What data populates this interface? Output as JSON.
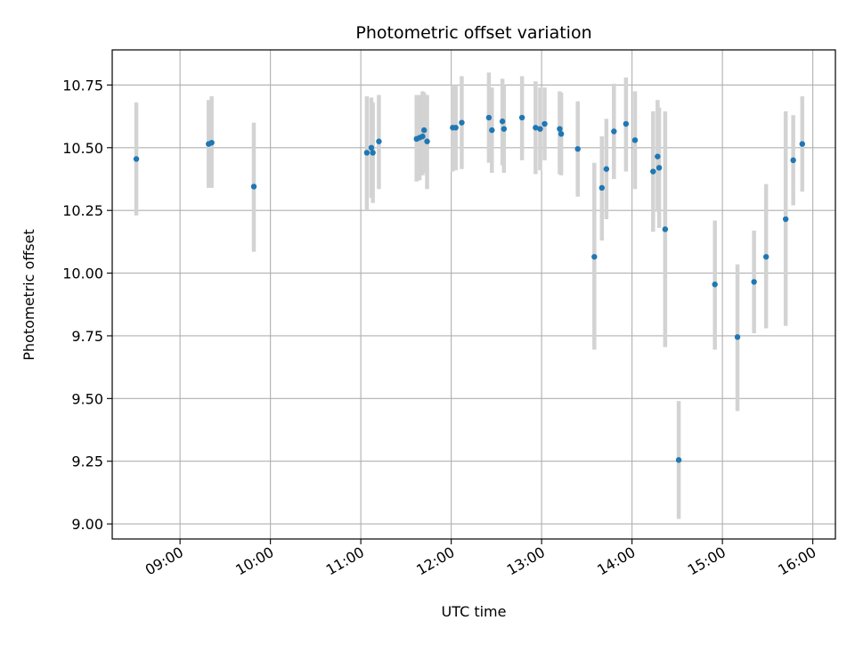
{
  "chart_data": {
    "type": "scatter",
    "title": "Photometric offset variation",
    "xlabel": "UTC time",
    "ylabel": "Photometric offset",
    "x_unit": "UTC time (HH:MM)",
    "xlim": [
      "08:15",
      "16:15"
    ],
    "ylim": [
      8.94,
      10.89
    ],
    "x_ticks": [
      "09:00",
      "10:00",
      "11:00",
      "12:00",
      "13:00",
      "14:00",
      "15:00",
      "16:00"
    ],
    "y_ticks": [
      9.0,
      9.25,
      9.5,
      9.75,
      10.0,
      10.25,
      10.5,
      10.75
    ],
    "y_tick_labels": [
      "9.00",
      "9.25",
      "9.50",
      "9.75",
      "10.00",
      "10.25",
      "10.50",
      "10.75"
    ],
    "grid": true,
    "legend": "none",
    "colors": {
      "point": "#1f77b4",
      "errorbar": "#d3d3d3",
      "grid": "#b0b0b0"
    },
    "series": [
      {
        "points": [
          {
            "x": "08:31",
            "y": 10.455,
            "low": 10.23,
            "high": 10.68
          },
          {
            "x": "09:19",
            "y": 10.515,
            "low": 10.34,
            "high": 10.69
          },
          {
            "x": "09:21",
            "y": 10.52,
            "low": 10.34,
            "high": 10.705
          },
          {
            "x": "09:49",
            "y": 10.345,
            "low": 10.085,
            "high": 10.6
          },
          {
            "x": "11:04",
            "y": 10.48,
            "low": 10.25,
            "high": 10.705
          },
          {
            "x": "11:07",
            "y": 10.5,
            "low": 10.3,
            "high": 10.7
          },
          {
            "x": "11:08",
            "y": 10.48,
            "low": 10.28,
            "high": 10.68
          },
          {
            "x": "11:12",
            "y": 10.525,
            "low": 10.335,
            "high": 10.71
          },
          {
            "x": "11:37",
            "y": 10.535,
            "low": 10.365,
            "high": 10.71
          },
          {
            "x": "11:39",
            "y": 10.54,
            "low": 10.37,
            "high": 10.71
          },
          {
            "x": "11:41",
            "y": 10.545,
            "low": 10.39,
            "high": 10.725
          },
          {
            "x": "11:42",
            "y": 10.57,
            "low": 10.4,
            "high": 10.72
          },
          {
            "x": "11:44",
            "y": 10.525,
            "low": 10.335,
            "high": 10.71
          },
          {
            "x": "12:01",
            "y": 10.58,
            "low": 10.405,
            "high": 10.75
          },
          {
            "x": "12:03",
            "y": 10.58,
            "low": 10.41,
            "high": 10.75
          },
          {
            "x": "12:07",
            "y": 10.6,
            "low": 10.415,
            "high": 10.785
          },
          {
            "x": "12:25",
            "y": 10.62,
            "low": 10.44,
            "high": 10.8
          },
          {
            "x": "12:27",
            "y": 10.57,
            "low": 10.4,
            "high": 10.74
          },
          {
            "x": "12:34",
            "y": 10.605,
            "low": 10.43,
            "high": 10.775
          },
          {
            "x": "12:35",
            "y": 10.575,
            "low": 10.4,
            "high": 10.75
          },
          {
            "x": "12:47",
            "y": 10.62,
            "low": 10.45,
            "high": 10.785
          },
          {
            "x": "12:56",
            "y": 10.58,
            "low": 10.395,
            "high": 10.765
          },
          {
            "x": "12:59",
            "y": 10.575,
            "low": 10.41,
            "high": 10.74
          },
          {
            "x": "13:02",
            "y": 10.595,
            "low": 10.45,
            "high": 10.74
          },
          {
            "x": "13:12",
            "y": 10.575,
            "low": 10.395,
            "high": 10.725
          },
          {
            "x": "13:13",
            "y": 10.555,
            "low": 10.39,
            "high": 10.72
          },
          {
            "x": "13:24",
            "y": 10.495,
            "low": 10.305,
            "high": 10.685
          },
          {
            "x": "13:35",
            "y": 10.065,
            "low": 9.695,
            "high": 10.44
          },
          {
            "x": "13:40",
            "y": 10.34,
            "low": 10.13,
            "high": 10.545
          },
          {
            "x": "13:43",
            "y": 10.415,
            "low": 10.215,
            "high": 10.615
          },
          {
            "x": "13:48",
            "y": 10.565,
            "low": 10.375,
            "high": 10.755
          },
          {
            "x": "13:56",
            "y": 10.595,
            "low": 10.405,
            "high": 10.78
          },
          {
            "x": "14:02",
            "y": 10.53,
            "low": 10.335,
            "high": 10.725
          },
          {
            "x": "14:14",
            "y": 10.405,
            "low": 10.165,
            "high": 10.645
          },
          {
            "x": "14:17",
            "y": 10.465,
            "low": 10.245,
            "high": 10.69
          },
          {
            "x": "14:18",
            "y": 10.42,
            "low": 10.18,
            "high": 10.66
          },
          {
            "x": "14:22",
            "y": 10.175,
            "low": 9.705,
            "high": 10.645
          },
          {
            "x": "14:31",
            "y": 9.255,
            "low": 9.02,
            "high": 9.49
          },
          {
            "x": "14:55",
            "y": 9.955,
            "low": 9.695,
            "high": 10.21
          },
          {
            "x": "15:10",
            "y": 9.745,
            "low": 9.45,
            "high": 10.035
          },
          {
            "x": "15:21",
            "y": 9.965,
            "low": 9.76,
            "high": 10.17
          },
          {
            "x": "15:29",
            "y": 10.065,
            "low": 9.78,
            "high": 10.355
          },
          {
            "x": "15:42",
            "y": 10.215,
            "low": 9.79,
            "high": 10.645
          },
          {
            "x": "15:47",
            "y": 10.45,
            "low": 10.27,
            "high": 10.63
          },
          {
            "x": "15:53",
            "y": 10.515,
            "low": 10.325,
            "high": 10.705
          }
        ]
      }
    ]
  }
}
